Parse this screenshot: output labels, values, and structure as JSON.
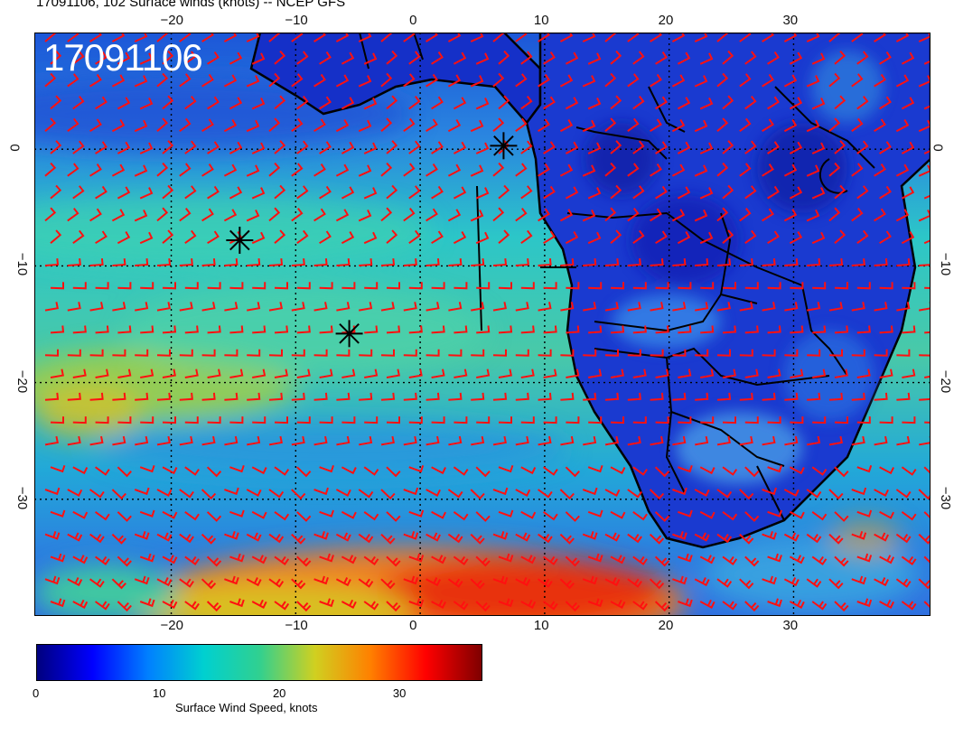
{
  "title": "17091106, 102 Surface winds (knots) -- NCEP GFS",
  "date_stamp": "17091106",
  "colorbar": {
    "label": "Surface Wind Speed, knots",
    "ticks": [
      "0",
      "10",
      "20",
      "30"
    ],
    "range": [
      0,
      37
    ],
    "colors": [
      "#00007f",
      "#0000ff",
      "#0080ff",
      "#00d0d0",
      "#30d090",
      "#d0d020",
      "#ff8000",
      "#ff0000",
      "#7f0000"
    ]
  },
  "map": {
    "projection": "lat-lon",
    "lon_range": [
      -31,
      41
    ],
    "lat_range": [
      -40,
      10
    ],
    "lon_ticks": [
      -20,
      -10,
      0,
      10,
      20,
      30
    ],
    "lat_ticks": [
      0,
      -10,
      -20,
      -30
    ],
    "lon_tick_labels": [
      "−20",
      "−10",
      "0",
      "10",
      "20",
      "30"
    ],
    "lat_tick_labels": [
      "0",
      "−10",
      "−20",
      "−30"
    ],
    "barb_color": "#ff0000",
    "land_color": "#1530c0",
    "ocean_low_wind": "#1a4fd8"
  },
  "markers": [
    {
      "name": "marker-a",
      "lon": 6.7,
      "lat": 0.3
    },
    {
      "name": "marker-b",
      "lon": -14.5,
      "lat": -7.8
    },
    {
      "name": "marker-c",
      "lon": -5.7,
      "lat": -15.8
    }
  ]
}
